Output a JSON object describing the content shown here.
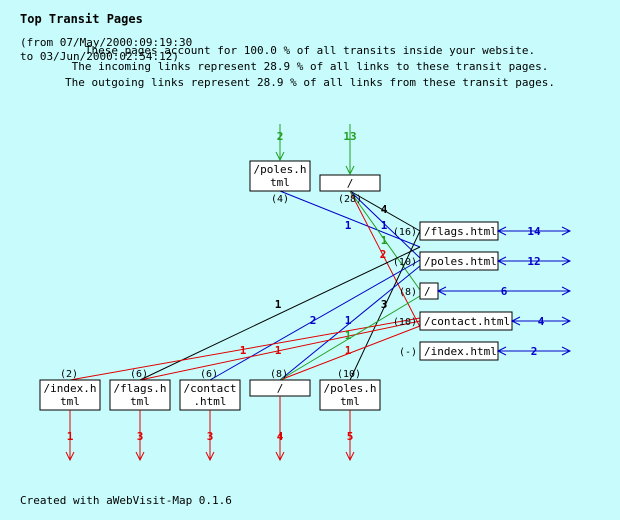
{
  "header": {
    "title": "Top Transit Pages",
    "range_from": "(from 07/May/2000:09:19:30",
    "range_to": "to 03/Jun/2000:02:54:12)",
    "desc": [
      "These pages account for 100.0 % of all transits inside your website.",
      "The incoming links represent 28.9 % of all links to these transit pages.",
      "The outgoing links represent 28.9 % of all links from these transit pages."
    ]
  },
  "colors": {
    "green": "#20a020",
    "red": "#e00000",
    "blue": "#0000c8",
    "black": "#000000",
    "box": "#ffffff"
  },
  "diagram": {
    "top_row": [
      {
        "id": "t1",
        "label_lines": [
          "/poles.h",
          "tml"
        ],
        "count": "(4)",
        "in_count": "2"
      },
      {
        "id": "t2",
        "label_lines": [
          "/"
        ],
        "count": "(28)",
        "in_count": "13"
      }
    ],
    "middle": [
      {
        "id": "m1",
        "label": "/flags.html",
        "count": "(16)",
        "out_count": "14"
      },
      {
        "id": "m2",
        "label": "/poles.html",
        "count": "(10)",
        "out_count": "12"
      },
      {
        "id": "m3",
        "label": "/",
        "count": "(8)",
        "out_count": "6"
      },
      {
        "id": "m4",
        "label": "/contact.html",
        "count": "(10)",
        "out_count": "4"
      },
      {
        "id": "m5",
        "label": "/index.html",
        "count": "(-)",
        "out_count": "2"
      }
    ],
    "bottom_row": [
      {
        "id": "b1",
        "label_lines": [
          "/index.h",
          "tml"
        ],
        "count": "(2)",
        "out_count": "1"
      },
      {
        "id": "b2",
        "label_lines": [
          "/flags.h",
          "tml"
        ],
        "count": "(6)",
        "out_count": "3"
      },
      {
        "id": "b3",
        "label_lines": [
          "/contact",
          ".html"
        ],
        "count": "(6)",
        "out_count": "3"
      },
      {
        "id": "b4",
        "label_lines": [
          "/"
        ],
        "count": "(8)",
        "out_count": "4"
      },
      {
        "id": "b5",
        "label_lines": [
          "/poles.h",
          "tml"
        ],
        "count": "(10)",
        "out_count": "5"
      }
    ],
    "links": [
      {
        "id": "l1",
        "color": "blue",
        "label": "1"
      },
      {
        "id": "l2",
        "color": "black",
        "label": "4"
      },
      {
        "id": "l3",
        "color": "blue",
        "label": "1"
      },
      {
        "id": "l4",
        "color": "red",
        "label": "2"
      },
      {
        "id": "l5",
        "color": "green",
        "label": "1"
      },
      {
        "id": "l6",
        "color": "black",
        "label": "1"
      },
      {
        "id": "l7",
        "color": "black",
        "label": "3"
      },
      {
        "id": "l8",
        "color": "blue",
        "label": "2"
      },
      {
        "id": "l9",
        "color": "blue",
        "label": "1"
      },
      {
        "id": "l10",
        "color": "red",
        "label": "1"
      },
      {
        "id": "l11",
        "color": "red",
        "label": "1"
      },
      {
        "id": "l12",
        "color": "red",
        "label": "1"
      },
      {
        "id": "l13",
        "color": "green",
        "label": "1"
      }
    ]
  },
  "footer": "Created with aWebVisit-Map 0.1.6"
}
